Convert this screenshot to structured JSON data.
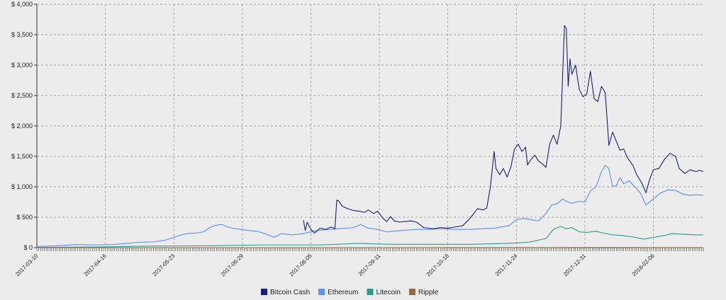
{
  "chart_data": {
    "type": "line",
    "title": "",
    "xlabel": "",
    "ylabel": "",
    "ylim": [
      0,
      4000
    ],
    "yticks": [
      0,
      500,
      1000,
      1500,
      2000,
      2500,
      3000,
      3500,
      4000
    ],
    "ytick_labels": [
      "$ 0",
      "$ 500",
      "$ 1,000",
      "$ 1,500",
      "$ 2,000",
      "$ 2,500",
      "$ 3,000",
      "$ 3,500",
      "$ 4,000"
    ],
    "xlim": [
      "2017-03-10",
      "2018-03-05"
    ],
    "xtick_labels": [
      "2017-03-10",
      "2017-04-16",
      "2017-05-23",
      "2017-06-29",
      "2017-08-05",
      "2017-09-11",
      "2017-10-18",
      "2017-11-24",
      "2017-12-31",
      "2018-02-06"
    ],
    "grid": true,
    "legend_position": "bottom",
    "series": [
      {
        "name": "Bitcoin Cash",
        "color": "#1b1f7a",
        "points": [
          [
            "2017-08-01",
            450
          ],
          [
            "2017-08-02",
            280
          ],
          [
            "2017-08-03",
            420
          ],
          [
            "2017-08-05",
            300
          ],
          [
            "2017-08-07",
            240
          ],
          [
            "2017-08-10",
            320
          ],
          [
            "2017-08-13",
            300
          ],
          [
            "2017-08-16",
            340
          ],
          [
            "2017-08-18",
            310
          ],
          [
            "2017-08-19",
            780
          ],
          [
            "2017-08-20",
            770
          ],
          [
            "2017-08-22",
            680
          ],
          [
            "2017-08-25",
            640
          ],
          [
            "2017-08-28",
            610
          ],
          [
            "2017-08-31",
            600
          ],
          [
            "2017-09-03",
            580
          ],
          [
            "2017-09-05",
            620
          ],
          [
            "2017-09-08",
            560
          ],
          [
            "2017-09-10",
            600
          ],
          [
            "2017-09-13",
            480
          ],
          [
            "2017-09-15",
            430
          ],
          [
            "2017-09-17",
            510
          ],
          [
            "2017-09-19",
            440
          ],
          [
            "2017-09-22",
            420
          ],
          [
            "2017-09-25",
            430
          ],
          [
            "2017-09-28",
            440
          ],
          [
            "2017-10-01",
            420
          ],
          [
            "2017-10-05",
            330
          ],
          [
            "2017-10-10",
            310
          ],
          [
            "2017-10-14",
            330
          ],
          [
            "2017-10-18",
            320
          ],
          [
            "2017-10-22",
            340
          ],
          [
            "2017-10-26",
            360
          ],
          [
            "2017-10-29",
            450
          ],
          [
            "2017-11-01",
            560
          ],
          [
            "2017-11-03",
            640
          ],
          [
            "2017-11-06",
            620
          ],
          [
            "2017-11-08",
            650
          ],
          [
            "2017-11-10",
            1000
          ],
          [
            "2017-11-12",
            1580
          ],
          [
            "2017-11-13",
            1300
          ],
          [
            "2017-11-15",
            1200
          ],
          [
            "2017-11-17",
            1300
          ],
          [
            "2017-11-19",
            1160
          ],
          [
            "2017-11-21",
            1320
          ],
          [
            "2017-11-23",
            1620
          ],
          [
            "2017-11-25",
            1700
          ],
          [
            "2017-11-27",
            1580
          ],
          [
            "2017-11-29",
            1650
          ],
          [
            "2017-11-30",
            1360
          ],
          [
            "2017-12-02",
            1450
          ],
          [
            "2017-12-04",
            1520
          ],
          [
            "2017-12-06",
            1420
          ],
          [
            "2017-12-08",
            1380
          ],
          [
            "2017-12-10",
            1320
          ],
          [
            "2017-12-12",
            1700
          ],
          [
            "2017-12-14",
            1850
          ],
          [
            "2017-12-16",
            1700
          ],
          [
            "2017-12-18",
            2000
          ],
          [
            "2017-12-20",
            3650
          ],
          [
            "2017-12-21",
            3600
          ],
          [
            "2017-12-22",
            2650
          ],
          [
            "2017-12-23",
            3100
          ],
          [
            "2017-12-24",
            2850
          ],
          [
            "2017-12-26",
            3000
          ],
          [
            "2017-12-28",
            2600
          ],
          [
            "2017-12-30",
            2480
          ],
          [
            "2018-01-01",
            2520
          ],
          [
            "2018-01-03",
            2900
          ],
          [
            "2018-01-05",
            2450
          ],
          [
            "2018-01-07",
            2400
          ],
          [
            "2018-01-09",
            2650
          ],
          [
            "2018-01-11",
            2550
          ],
          [
            "2018-01-13",
            1680
          ],
          [
            "2018-01-15",
            1900
          ],
          [
            "2018-01-17",
            1750
          ],
          [
            "2018-01-19",
            1600
          ],
          [
            "2018-01-21",
            1620
          ],
          [
            "2018-01-23",
            1480
          ],
          [
            "2018-01-26",
            1350
          ],
          [
            "2018-01-28",
            1200
          ],
          [
            "2018-01-31",
            1050
          ],
          [
            "2018-02-02",
            900
          ],
          [
            "2018-02-04",
            1120
          ],
          [
            "2018-02-06",
            1280
          ],
          [
            "2018-02-09",
            1300
          ],
          [
            "2018-02-12",
            1450
          ],
          [
            "2018-02-15",
            1550
          ],
          [
            "2018-02-18",
            1500
          ],
          [
            "2018-02-20",
            1300
          ],
          [
            "2018-02-23",
            1220
          ],
          [
            "2018-02-26",
            1280
          ],
          [
            "2018-03-01",
            1250
          ],
          [
            "2018-03-03",
            1270
          ],
          [
            "2018-03-05",
            1250
          ]
        ]
      },
      {
        "name": "Ethereum",
        "color": "#5b8ff2",
        "points": [
          [
            "2017-03-10",
            20
          ],
          [
            "2017-03-20",
            30
          ],
          [
            "2017-03-31",
            50
          ],
          [
            "2017-04-10",
            45
          ],
          [
            "2017-04-20",
            50
          ],
          [
            "2017-04-28",
            70
          ],
          [
            "2017-05-05",
            90
          ],
          [
            "2017-05-12",
            95
          ],
          [
            "2017-05-18",
            120
          ],
          [
            "2017-05-22",
            160
          ],
          [
            "2017-05-26",
            200
          ],
          [
            "2017-05-30",
            230
          ],
          [
            "2017-06-04",
            240
          ],
          [
            "2017-06-08",
            260
          ],
          [
            "2017-06-12",
            340
          ],
          [
            "2017-06-15",
            370
          ],
          [
            "2017-06-18",
            380
          ],
          [
            "2017-06-21",
            340
          ],
          [
            "2017-06-25",
            310
          ],
          [
            "2017-06-29",
            300
          ],
          [
            "2017-07-03",
            280
          ],
          [
            "2017-07-07",
            270
          ],
          [
            "2017-07-12",
            220
          ],
          [
            "2017-07-16",
            170
          ],
          [
            "2017-07-20",
            230
          ],
          [
            "2017-07-26",
            210
          ],
          [
            "2017-08-01",
            230
          ],
          [
            "2017-08-08",
            280
          ],
          [
            "2017-08-15",
            300
          ],
          [
            "2017-08-20",
            310
          ],
          [
            "2017-08-28",
            330
          ],
          [
            "2017-09-01",
            380
          ],
          [
            "2017-09-05",
            320
          ],
          [
            "2017-09-10",
            300
          ],
          [
            "2017-09-15",
            260
          ],
          [
            "2017-09-22",
            280
          ],
          [
            "2017-10-01",
            300
          ],
          [
            "2017-10-08",
            300
          ],
          [
            "2017-10-15",
            310
          ],
          [
            "2017-10-22",
            300
          ],
          [
            "2017-10-30",
            300
          ],
          [
            "2017-11-05",
            310
          ],
          [
            "2017-11-12",
            320
          ],
          [
            "2017-11-20",
            360
          ],
          [
            "2017-11-24",
            460
          ],
          [
            "2017-11-28",
            480
          ],
          [
            "2017-12-02",
            460
          ],
          [
            "2017-12-06",
            440
          ],
          [
            "2017-12-10",
            560
          ],
          [
            "2017-12-13",
            700
          ],
          [
            "2017-12-16",
            720
          ],
          [
            "2017-12-19",
            800
          ],
          [
            "2017-12-21",
            760
          ],
          [
            "2017-12-24",
            730
          ],
          [
            "2017-12-28",
            760
          ],
          [
            "2017-12-31",
            750
          ],
          [
            "2018-01-03",
            930
          ],
          [
            "2018-01-06",
            1000
          ],
          [
            "2018-01-09",
            1250
          ],
          [
            "2018-01-11",
            1350
          ],
          [
            "2018-01-13",
            1300
          ],
          [
            "2018-01-15",
            1000
          ],
          [
            "2018-01-17",
            1020
          ],
          [
            "2018-01-19",
            1150
          ],
          [
            "2018-01-21",
            1050
          ],
          [
            "2018-01-24",
            1100
          ],
          [
            "2018-01-27",
            1000
          ],
          [
            "2018-01-30",
            900
          ],
          [
            "2018-02-02",
            700
          ],
          [
            "2018-02-06",
            800
          ],
          [
            "2018-02-10",
            900
          ],
          [
            "2018-02-14",
            950
          ],
          [
            "2018-02-18",
            940
          ],
          [
            "2018-02-22",
            880
          ],
          [
            "2018-02-26",
            860
          ],
          [
            "2018-03-01",
            870
          ],
          [
            "2018-03-05",
            860
          ]
        ]
      },
      {
        "name": "Litecoin",
        "color": "#2a9a8a",
        "points": [
          [
            "2017-03-10",
            5
          ],
          [
            "2017-04-10",
            10
          ],
          [
            "2017-05-10",
            25
          ],
          [
            "2017-06-10",
            30
          ],
          [
            "2017-07-10",
            45
          ],
          [
            "2017-08-10",
            45
          ],
          [
            "2017-09-01",
            70
          ],
          [
            "2017-09-10",
            60
          ],
          [
            "2017-09-20",
            55
          ],
          [
            "2017-10-10",
            55
          ],
          [
            "2017-10-30",
            55
          ],
          [
            "2017-11-20",
            70
          ],
          [
            "2017-12-01",
            90
          ],
          [
            "2017-12-10",
            150
          ],
          [
            "2017-12-14",
            300
          ],
          [
            "2017-12-18",
            350
          ],
          [
            "2017-12-21",
            310
          ],
          [
            "2017-12-24",
            330
          ],
          [
            "2017-12-28",
            260
          ],
          [
            "2018-01-01",
            250
          ],
          [
            "2018-01-06",
            270
          ],
          [
            "2018-01-10",
            240
          ],
          [
            "2018-01-15",
            210
          ],
          [
            "2018-01-20",
            200
          ],
          [
            "2018-01-25",
            180
          ],
          [
            "2018-02-01",
            140
          ],
          [
            "2018-02-06",
            170
          ],
          [
            "2018-02-12",
            200
          ],
          [
            "2018-02-16",
            230
          ],
          [
            "2018-02-22",
            220
          ],
          [
            "2018-03-01",
            210
          ],
          [
            "2018-03-05",
            210
          ]
        ]
      },
      {
        "name": "Ripple",
        "color": "#9b6a3a",
        "points": [
          [
            "2017-03-10",
            0
          ],
          [
            "2017-06-10",
            0
          ],
          [
            "2017-09-10",
            0
          ],
          [
            "2017-12-01",
            1
          ],
          [
            "2017-12-31",
            2
          ],
          [
            "2018-01-10",
            3
          ],
          [
            "2018-02-06",
            1
          ],
          [
            "2018-03-05",
            1
          ]
        ]
      }
    ]
  }
}
